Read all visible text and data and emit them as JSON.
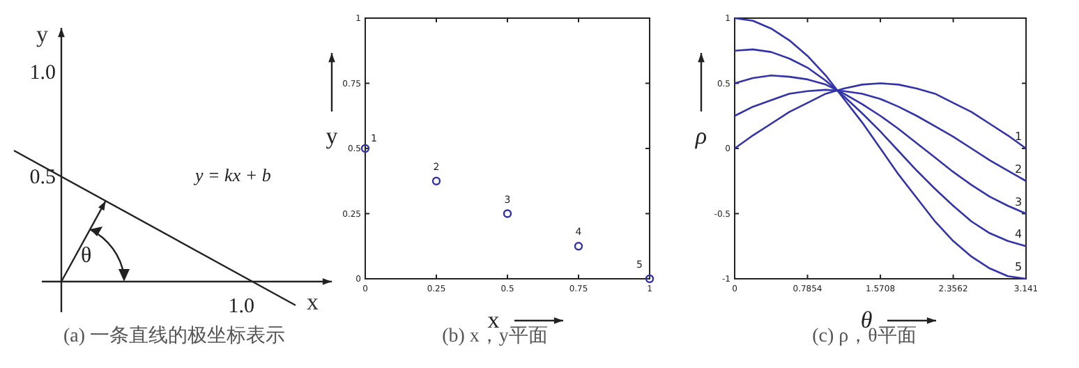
{
  "chart_data": [
    {
      "type": "other",
      "title": "(a) 一条直线的极坐标表示",
      "xlabel": "x",
      "ylabel": "y",
      "annotations": [
        "y = kx + b",
        "θ",
        "1.0",
        "0.5",
        "1.0"
      ]
    },
    {
      "type": "scatter",
      "title": "(b) x，y平面",
      "xlabel": "x",
      "ylabel": "y",
      "xlim": [
        0,
        1
      ],
      "ylim": [
        0,
        1
      ],
      "xticks": [
        0,
        0.25,
        0.5,
        0.75,
        1
      ],
      "yticks": [
        0,
        0.25,
        0.5,
        0.75,
        1
      ],
      "series": [
        {
          "name": "1",
          "color": "#3333aa",
          "x": [
            0
          ],
          "values": [
            0.5
          ]
        },
        {
          "name": "2",
          "color": "#3333aa",
          "x": [
            0.25
          ],
          "values": [
            0.375
          ]
        },
        {
          "name": "3",
          "color": "#3333aa",
          "x": [
            0.5
          ],
          "values": [
            0.25
          ]
        },
        {
          "name": "4",
          "color": "#3333aa",
          "x": [
            0.75
          ],
          "values": [
            0.125
          ]
        },
        {
          "name": "5",
          "color": "#3333aa",
          "x": [
            1
          ],
          "values": [
            0
          ]
        }
      ],
      "marker": "circle"
    },
    {
      "type": "line",
      "title": "(c) ρ，θ平面",
      "xlabel": "θ",
      "ylabel": "ρ",
      "xlim": [
        0,
        3.141
      ],
      "ylim": [
        -1,
        1
      ],
      "xticks": [
        0,
        0.7854,
        1.5708,
        2.3562,
        3.141
      ],
      "yticks": [
        -1,
        -0.5,
        0,
        0.5,
        1
      ],
      "series": [
        {
          "name": "1",
          "color": "#3333aa",
          "x": [
            0,
            0.196,
            0.393,
            0.589,
            0.785,
            0.982,
            1.178,
            1.374,
            1.571,
            1.767,
            1.963,
            2.16,
            2.356,
            2.553,
            2.749,
            2.945,
            3.141
          ],
          "values": [
            0,
            0.1,
            0.19,
            0.28,
            0.35,
            0.42,
            0.46,
            0.49,
            0.5,
            0.49,
            0.46,
            0.42,
            0.35,
            0.28,
            0.19,
            0.1,
            0
          ]
        },
        {
          "name": "2",
          "color": "#3333aa",
          "x": [
            0,
            0.196,
            0.393,
            0.589,
            0.785,
            0.982,
            1.178,
            1.374,
            1.571,
            1.767,
            1.963,
            2.16,
            2.356,
            2.553,
            2.749,
            2.945,
            3.141
          ],
          "values": [
            0.25,
            0.32,
            0.37,
            0.42,
            0.44,
            0.45,
            0.44,
            0.42,
            0.38,
            0.32,
            0.25,
            0.17,
            0.09,
            0,
            -0.09,
            -0.17,
            -0.25
          ]
        },
        {
          "name": "3",
          "color": "#3333aa",
          "x": [
            0,
            0.196,
            0.393,
            0.589,
            0.785,
            0.982,
            1.178,
            1.374,
            1.571,
            1.767,
            1.963,
            2.16,
            2.356,
            2.553,
            2.749,
            2.945,
            3.141
          ],
          "values": [
            0.5,
            0.54,
            0.56,
            0.55,
            0.53,
            0.49,
            0.42,
            0.34,
            0.25,
            0.15,
            0.04,
            -0.07,
            -0.18,
            -0.28,
            -0.37,
            -0.44,
            -0.5
          ]
        },
        {
          "name": "4",
          "color": "#3333aa",
          "x": [
            0,
            0.196,
            0.393,
            0.589,
            0.785,
            0.982,
            1.178,
            1.374,
            1.571,
            1.767,
            1.963,
            2.16,
            2.356,
            2.553,
            2.749,
            2.945,
            3.141
          ],
          "values": [
            0.75,
            0.76,
            0.74,
            0.69,
            0.62,
            0.52,
            0.4,
            0.27,
            0.13,
            -0.02,
            -0.17,
            -0.31,
            -0.44,
            -0.56,
            -0.65,
            -0.71,
            -0.75
          ]
        },
        {
          "name": "5",
          "color": "#3333aa",
          "x": [
            0,
            0.196,
            0.393,
            0.589,
            0.785,
            0.982,
            1.178,
            1.374,
            1.571,
            1.767,
            1.963,
            2.16,
            2.356,
            2.553,
            2.749,
            2.945,
            3.141
          ],
          "values": [
            1,
            0.98,
            0.92,
            0.83,
            0.71,
            0.56,
            0.38,
            0.2,
            0,
            -0.2,
            -0.38,
            -0.56,
            -0.71,
            -0.83,
            -0.92,
            -0.98,
            -1
          ]
        }
      ],
      "marker": "none",
      "line_style": "solid"
    }
  ]
}
